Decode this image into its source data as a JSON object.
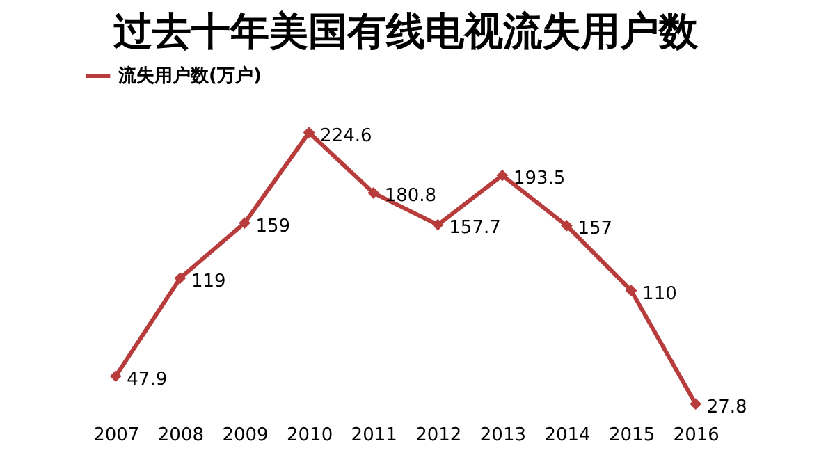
{
  "chart_data": {
    "type": "line",
    "title": "过去十年美国有线电视流失用户数",
    "categories": [
      "2007",
      "2008",
      "2009",
      "2010",
      "2011",
      "2012",
      "2013",
      "2014",
      "2015",
      "2016"
    ],
    "series": [
      {
        "name": "流失用户数(万户)",
        "color": "#b83c3c",
        "values": [
          47.9,
          119,
          159,
          224.6,
          180.8,
          157.7,
          193.5,
          157,
          110,
          27.8
        ]
      }
    ],
    "data_labels": true,
    "legend": "top",
    "marker": "diamond",
    "grid": false
  }
}
